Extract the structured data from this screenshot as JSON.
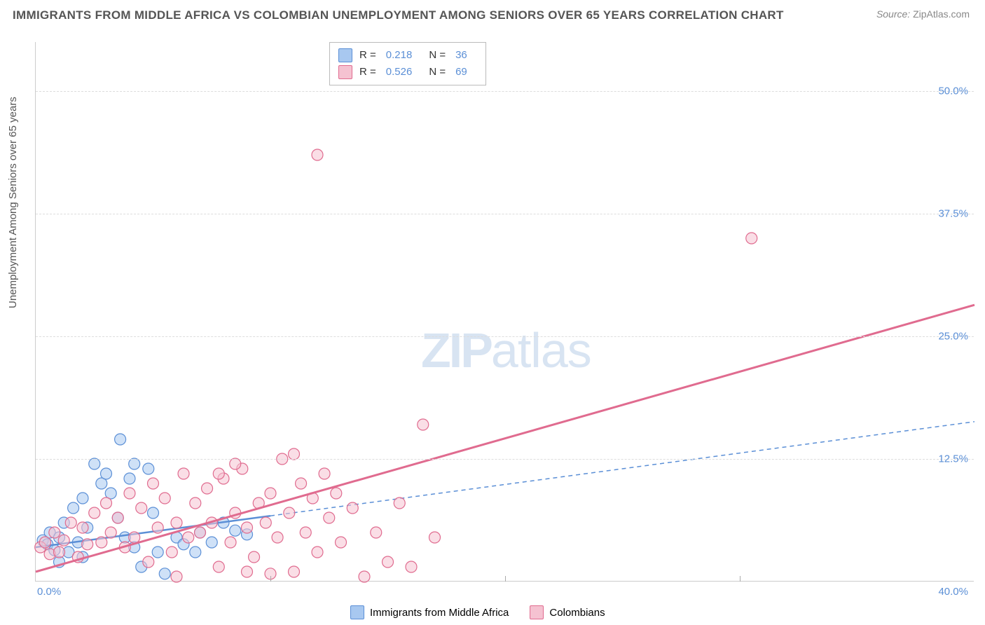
{
  "title": "IMMIGRANTS FROM MIDDLE AFRICA VS COLOMBIAN UNEMPLOYMENT AMONG SENIORS OVER 65 YEARS CORRELATION CHART",
  "source_label": "Source:",
  "source_value": "ZipAtlas.com",
  "y_axis_label": "Unemployment Among Seniors over 65 years",
  "watermark_zip": "ZIP",
  "watermark_rest": "atlas",
  "chart": {
    "type": "scatter",
    "xlim": [
      0,
      40
    ],
    "ylim": [
      0,
      55
    ],
    "xtick_labels": [
      "0.0%",
      "40.0%"
    ],
    "xtick_positions": [
      0,
      40
    ],
    "xtick_minor": [
      10,
      20,
      30
    ],
    "ytick_labels": [
      "12.5%",
      "25.0%",
      "37.5%",
      "50.0%"
    ],
    "ytick_positions": [
      12.5,
      25,
      37.5,
      50
    ],
    "grid_color": "#dddddd",
    "axis_color": "#cccccc",
    "background_color": "#ffffff",
    "tick_label_color": "#5b8fd6",
    "marker_radius": 8,
    "marker_opacity": 0.55,
    "series": [
      {
        "name": "Immigrants from Middle Africa",
        "R": "0.218",
        "N": "36",
        "fill_color": "#a8c8f0",
        "stroke_color": "#5b8fd6",
        "trend_color": "#5b8fd6",
        "trend_solid_x": [
          0,
          10
        ],
        "trend_dashed_x": [
          10,
          40
        ],
        "trend_y_at_x0": 3.5,
        "trend_slope": 0.32,
        "points": [
          [
            0.3,
            4.2
          ],
          [
            0.5,
            3.8
          ],
          [
            0.6,
            5.0
          ],
          [
            0.8,
            3.2
          ],
          [
            1.0,
            4.5
          ],
          [
            1.2,
            6.0
          ],
          [
            1.4,
            3.0
          ],
          [
            1.6,
            7.5
          ],
          [
            1.8,
            4.0
          ],
          [
            2.0,
            8.5
          ],
          [
            2.2,
            5.5
          ],
          [
            2.5,
            12.0
          ],
          [
            2.8,
            10.0
          ],
          [
            3.0,
            11.0
          ],
          [
            3.2,
            9.0
          ],
          [
            3.5,
            6.5
          ],
          [
            3.8,
            4.5
          ],
          [
            4.0,
            10.5
          ],
          [
            4.2,
            3.5
          ],
          [
            4.5,
            1.5
          ],
          [
            4.8,
            11.5
          ],
          [
            5.0,
            7.0
          ],
          [
            5.2,
            3.0
          ],
          [
            5.5,
            0.8
          ],
          [
            6.0,
            4.5
          ],
          [
            6.3,
            3.8
          ],
          [
            6.8,
            3.0
          ],
          [
            7.0,
            5.0
          ],
          [
            7.5,
            4.0
          ],
          [
            8.0,
            6.0
          ],
          [
            8.5,
            5.2
          ],
          [
            9.0,
            4.8
          ],
          [
            3.6,
            14.5
          ],
          [
            4.2,
            12.0
          ],
          [
            1.0,
            2.0
          ],
          [
            2.0,
            2.5
          ]
        ]
      },
      {
        "name": "Colombians",
        "R": "0.526",
        "N": "69",
        "fill_color": "#f5c2d1",
        "stroke_color": "#e06b8f",
        "trend_color": "#e06b8f",
        "trend_solid_x": [
          0,
          40
        ],
        "trend_y_at_x0": 1.0,
        "trend_slope": 0.68,
        "points": [
          [
            0.2,
            3.5
          ],
          [
            0.4,
            4.0
          ],
          [
            0.6,
            2.8
          ],
          [
            0.8,
            5.0
          ],
          [
            1.0,
            3.0
          ],
          [
            1.2,
            4.2
          ],
          [
            1.5,
            6.0
          ],
          [
            1.8,
            2.5
          ],
          [
            2.0,
            5.5
          ],
          [
            2.2,
            3.8
          ],
          [
            2.5,
            7.0
          ],
          [
            2.8,
            4.0
          ],
          [
            3.0,
            8.0
          ],
          [
            3.2,
            5.0
          ],
          [
            3.5,
            6.5
          ],
          [
            3.8,
            3.5
          ],
          [
            4.0,
            9.0
          ],
          [
            4.2,
            4.5
          ],
          [
            4.5,
            7.5
          ],
          [
            4.8,
            2.0
          ],
          [
            5.0,
            10.0
          ],
          [
            5.2,
            5.5
          ],
          [
            5.5,
            8.5
          ],
          [
            5.8,
            3.0
          ],
          [
            6.0,
            6.0
          ],
          [
            6.3,
            11.0
          ],
          [
            6.5,
            4.5
          ],
          [
            6.8,
            8.0
          ],
          [
            7.0,
            5.0
          ],
          [
            7.3,
            9.5
          ],
          [
            7.5,
            6.0
          ],
          [
            7.8,
            1.5
          ],
          [
            8.0,
            10.5
          ],
          [
            8.3,
            4.0
          ],
          [
            8.5,
            7.0
          ],
          [
            8.8,
            11.5
          ],
          [
            9.0,
            5.5
          ],
          [
            9.3,
            2.5
          ],
          [
            9.5,
            8.0
          ],
          [
            9.8,
            6.0
          ],
          [
            10.0,
            9.0
          ],
          [
            10.3,
            4.5
          ],
          [
            10.5,
            12.5
          ],
          [
            10.8,
            7.0
          ],
          [
            11.0,
            1.0
          ],
          [
            11.3,
            10.0
          ],
          [
            11.5,
            5.0
          ],
          [
            11.8,
            8.5
          ],
          [
            12.0,
            3.0
          ],
          [
            12.3,
            11.0
          ],
          [
            12.5,
            6.5
          ],
          [
            12.8,
            9.0
          ],
          [
            13.0,
            4.0
          ],
          [
            13.5,
            7.5
          ],
          [
            14.0,
            0.5
          ],
          [
            14.5,
            5.0
          ],
          [
            15.0,
            2.0
          ],
          [
            15.5,
            8.0
          ],
          [
            16.0,
            1.5
          ],
          [
            16.5,
            16.0
          ],
          [
            17.0,
            4.5
          ],
          [
            12.0,
            43.5
          ],
          [
            30.5,
            35.0
          ],
          [
            9.0,
            1.0
          ],
          [
            10.0,
            0.8
          ],
          [
            11.0,
            13.0
          ],
          [
            7.8,
            11.0
          ],
          [
            8.5,
            12.0
          ],
          [
            6.0,
            0.5
          ]
        ]
      }
    ]
  },
  "legend_top": {
    "r_label": "R =",
    "n_label": "N ="
  },
  "legend_bottom": {
    "items": [
      "Immigrants from Middle Africa",
      "Colombians"
    ]
  }
}
